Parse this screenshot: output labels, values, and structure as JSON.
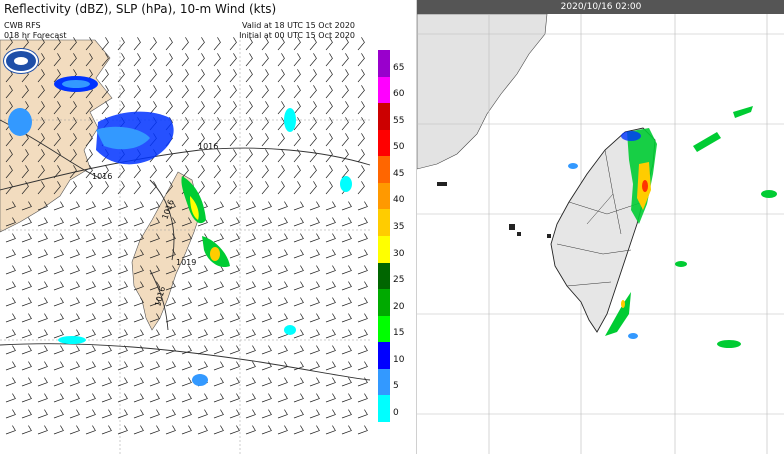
{
  "left_panel": {
    "title": "Reflectivity (dBZ), SLP (hPa), 10-m Wind (kts)",
    "model": "CWB RFS",
    "forecast": "018 hr Forecast",
    "valid": "Valid at 18 UTC 15 Oct 2020",
    "initial": "Initial at 00 UTC 15 Oct 2020",
    "isobar_labels": [
      "1016",
      "1016",
      "1016",
      "1016",
      "1019"
    ],
    "colorbar": {
      "levels": [
        "65",
        "60",
        "55",
        "50",
        "45",
        "40",
        "35",
        "30",
        "25",
        "20",
        "15",
        "10",
        "5",
        "0"
      ],
      "colors": [
        "#9900cc",
        "#ff00ff",
        "#cc0000",
        "#ff0000",
        "#ff6600",
        "#ff9900",
        "#ffcc00",
        "#ffff00",
        "#006600",
        "#00aa00",
        "#00ff00",
        "#0000ff",
        "#3399ff",
        "#00ffff"
      ]
    }
  },
  "right_panel": {
    "timestamp": "2020/10/16 02:00"
  }
}
